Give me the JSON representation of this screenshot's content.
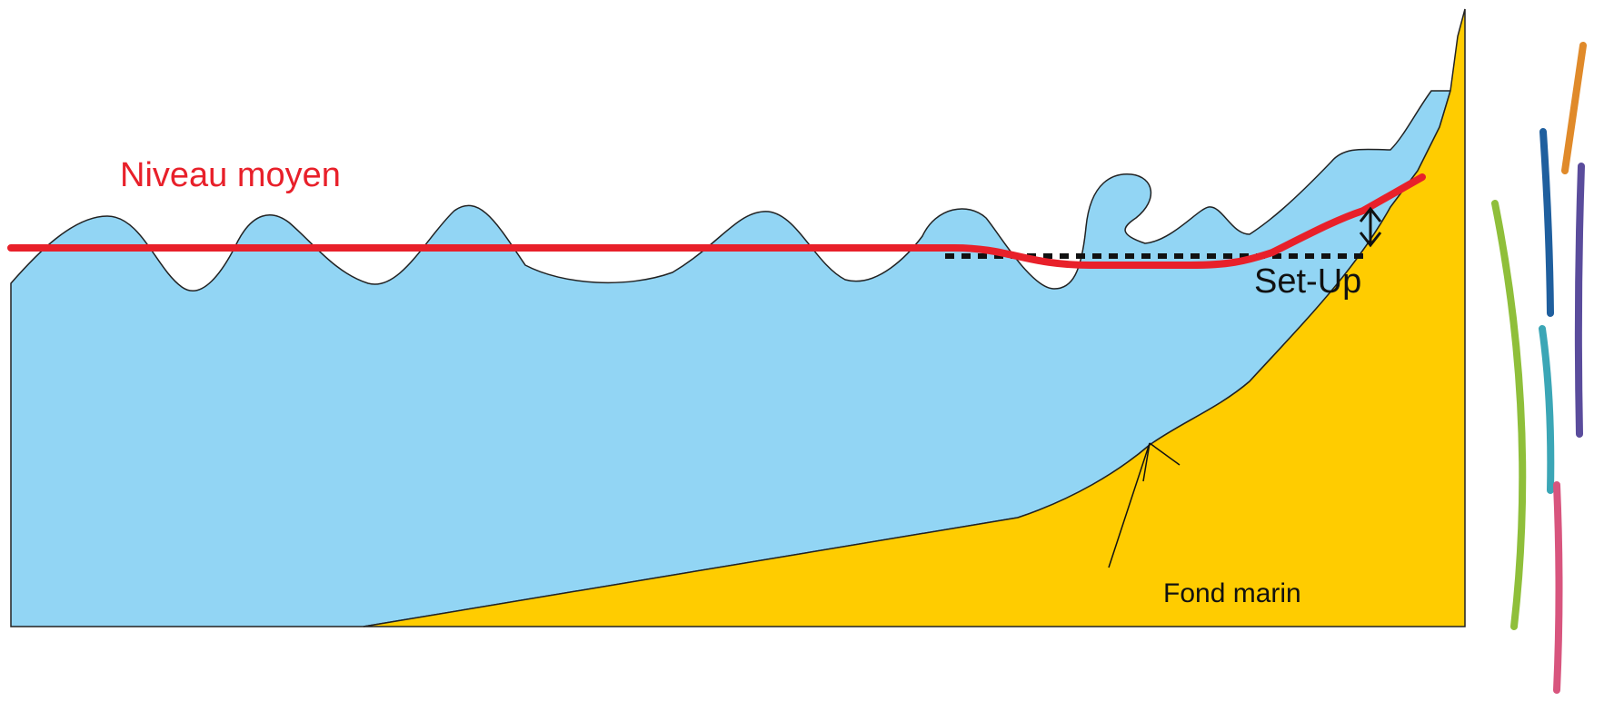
{
  "labels": {
    "mean_level": "Niveau moyen",
    "setup": "Set-Up",
    "seabed": "Fond marin"
  },
  "colors": {
    "water": "#92d5f4",
    "seabed": "#ffcc00",
    "mean_level_line": "#e8202a",
    "outline": "#222222",
    "dashed_reference": "#111111",
    "label_mean_level": "#e8202a",
    "label_dark": "#111111",
    "deco_orange": "#e08a2a",
    "deco_blue": "#1f5f9e",
    "deco_purple": "#5a4c9c",
    "deco_green": "#8fbf3a",
    "deco_teal": "#3ba6b6",
    "deco_pink": "#d8557e"
  }
}
